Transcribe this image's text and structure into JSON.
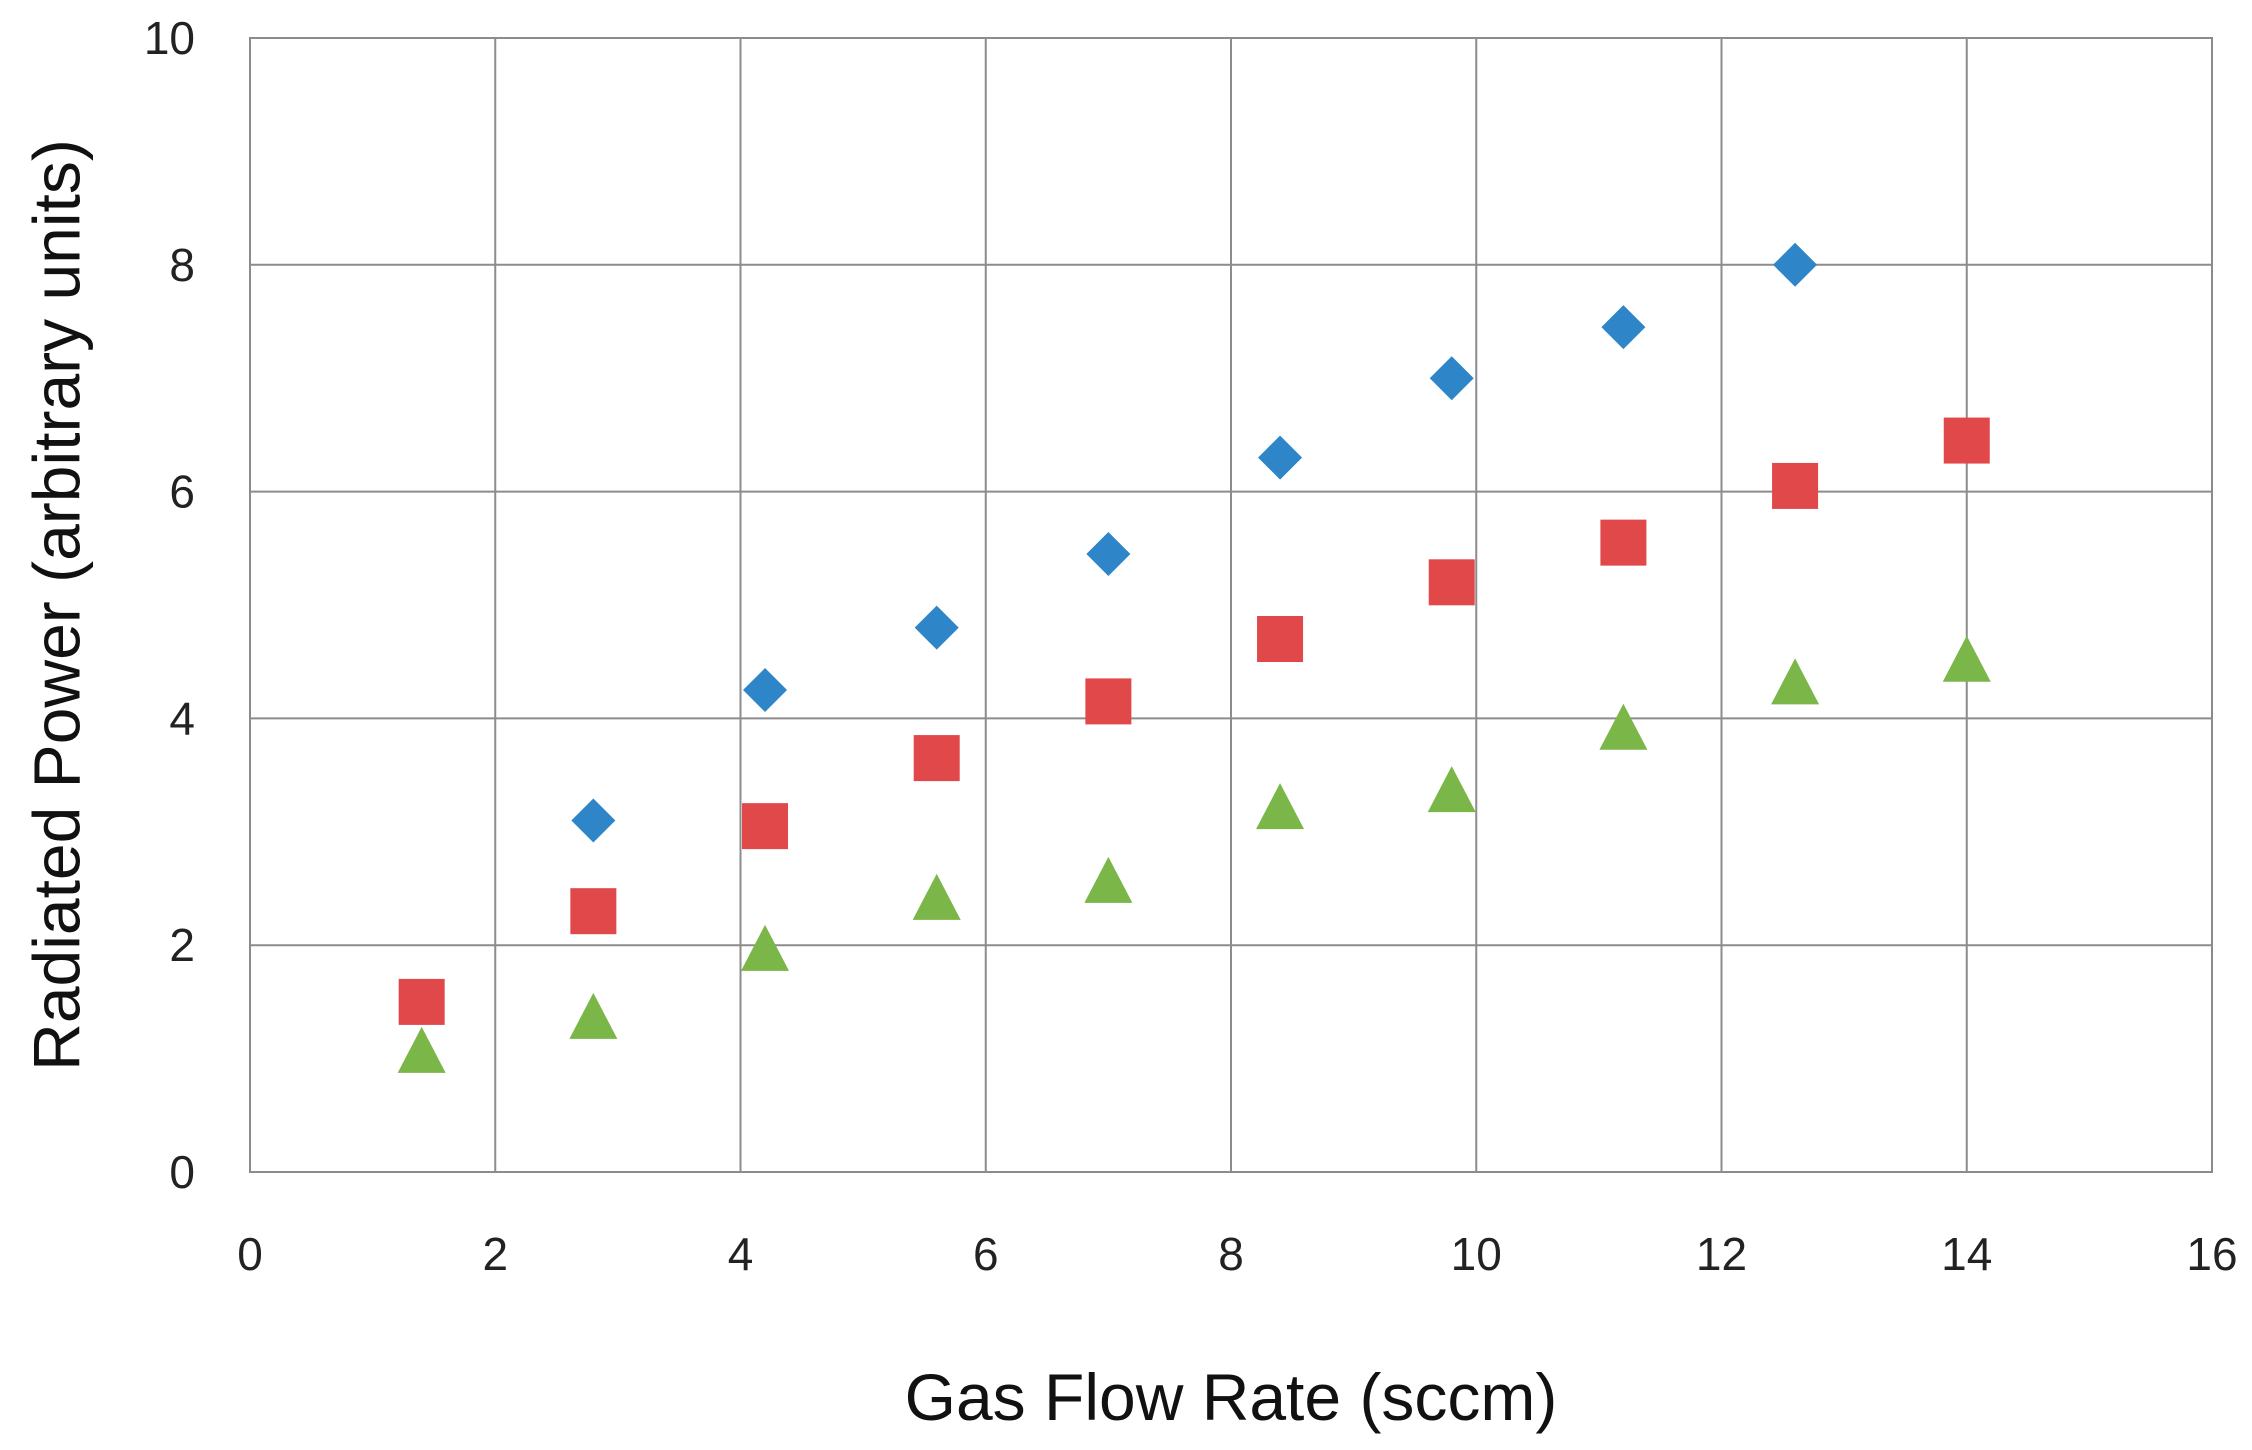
{
  "chart_data": {
    "type": "scatter",
    "title": "",
    "xlabel": "Gas Flow Rate (sccm)",
    "ylabel": "Radiated Power (arbitrary units)",
    "xlim": [
      0,
      16
    ],
    "ylim": [
      0,
      10
    ],
    "xticks": [
      "0",
      "2",
      "4",
      "6",
      "8",
      "10",
      "12",
      "14",
      "16"
    ],
    "yticks": [
      "0",
      "2",
      "4",
      "6",
      "8",
      "10"
    ],
    "grid": true,
    "legend": "none",
    "series": [
      {
        "marker": "diamond",
        "color": "#2e86c9",
        "x": [
          2.8,
          4.2,
          5.6,
          7.0,
          8.4,
          9.8,
          11.2,
          12.6
        ],
        "y": [
          3.1,
          4.25,
          4.8,
          5.45,
          6.3,
          7.0,
          7.45,
          8.0
        ]
      },
      {
        "marker": "square",
        "color": "#e0484a",
        "x": [
          1.4,
          2.8,
          4.2,
          5.6,
          7.0,
          8.4,
          9.8,
          11.2,
          12.6,
          14.0
        ],
        "y": [
          1.5,
          2.3,
          3.05,
          3.65,
          4.15,
          4.7,
          5.2,
          5.55,
          6.05,
          6.45
        ]
      },
      {
        "marker": "triangle",
        "color": "#7ab648",
        "x": [
          1.4,
          2.8,
          4.2,
          5.6,
          7.0,
          8.4,
          9.8,
          11.2,
          12.6,
          14.0
        ],
        "y": [
          1.05,
          1.35,
          1.95,
          2.4,
          2.55,
          3.2,
          3.35,
          3.9,
          4.3,
          4.5
        ]
      }
    ]
  }
}
